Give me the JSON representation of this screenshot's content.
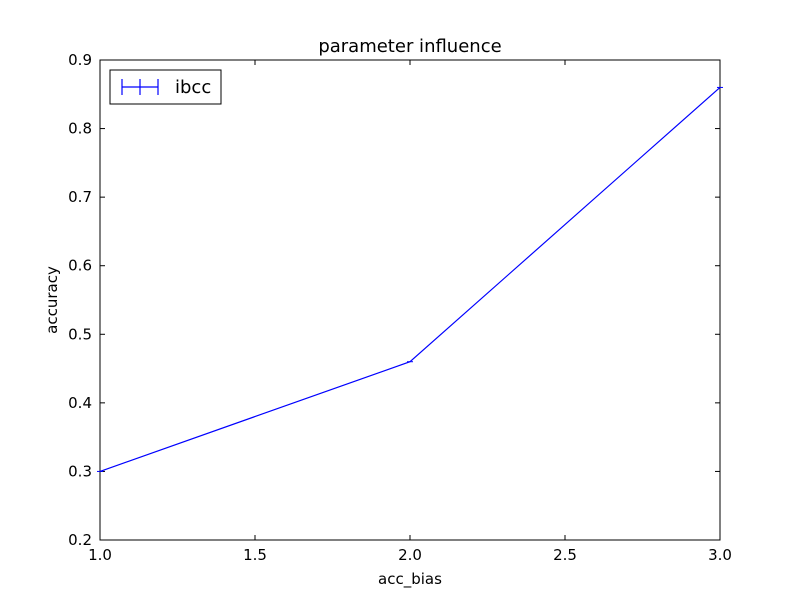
{
  "chart_data": {
    "type": "line",
    "title": "parameter influence",
    "xlabel": "acc_bias",
    "ylabel": "accuracy",
    "xlim": [
      1.0,
      3.0
    ],
    "ylim": [
      0.2,
      0.9
    ],
    "x_ticks": [
      "1.0",
      "1.5",
      "2.0",
      "2.5",
      "3.0"
    ],
    "y_ticks": [
      "0.2",
      "0.3",
      "0.4",
      "0.5",
      "0.6",
      "0.7",
      "0.8",
      "0.9"
    ],
    "grid": false,
    "legend_position": "upper-left",
    "series": [
      {
        "name": "ibcc",
        "color": "#0000ff",
        "error_bars": true,
        "x": [
          1.0,
          2.0,
          3.0
        ],
        "y": [
          0.3,
          0.46,
          0.86
        ]
      }
    ]
  }
}
